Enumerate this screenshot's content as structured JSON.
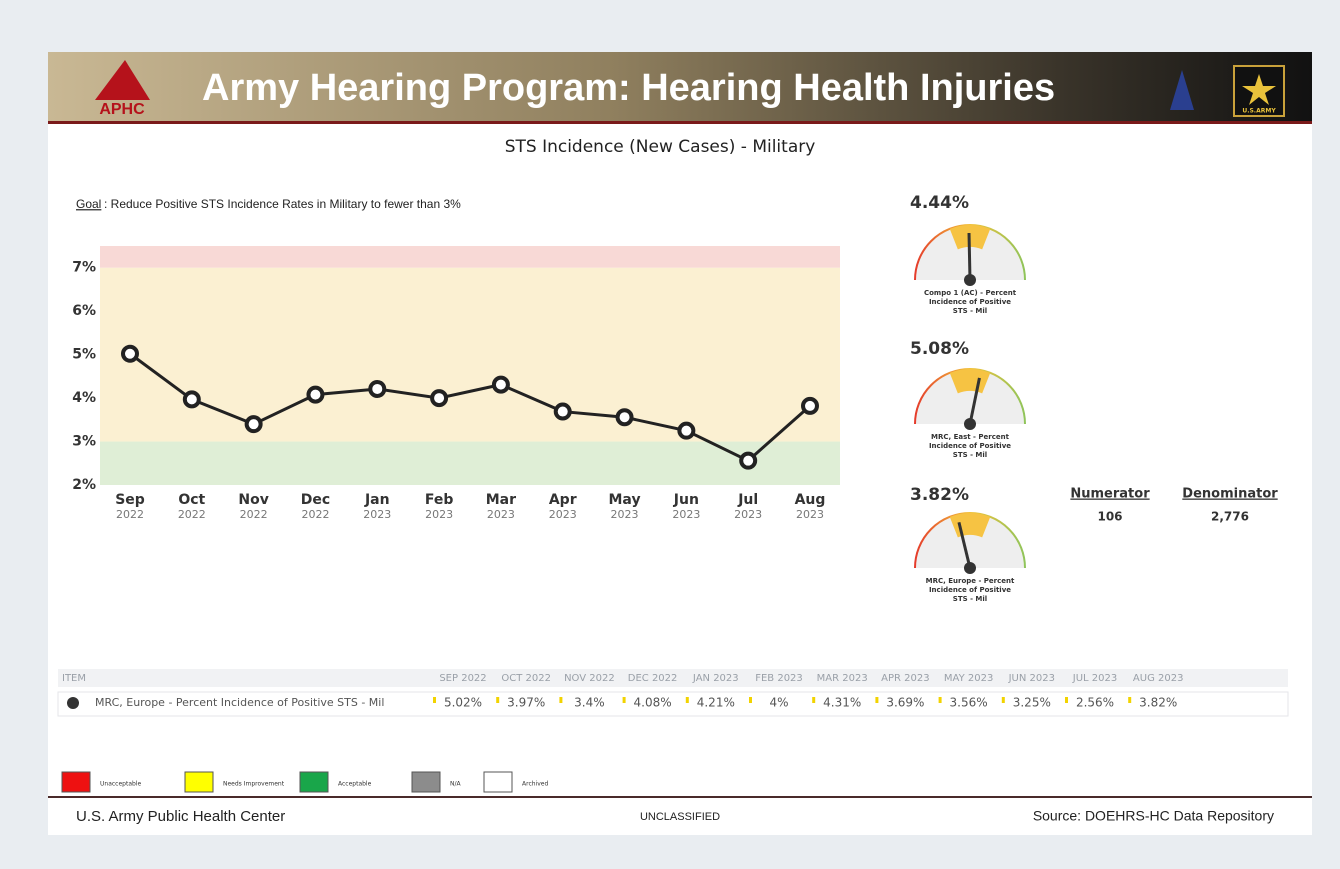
{
  "header": {
    "title": "Army Hearing Program:  Hearing Health Injuries",
    "logo_left": "APHC",
    "logo_right": "U.S.ARMY"
  },
  "chart_data": {
    "type": "line",
    "title": "STS Incidence (New Cases) - Military",
    "goal_label": "Goal",
    "goal_text": ": Reduce Positive STS Incidence Rates in Military to fewer than 3%",
    "categories": [
      "Sep",
      "Oct",
      "Nov",
      "Dec",
      "Jan",
      "Feb",
      "Mar",
      "Apr",
      "May",
      "Jun",
      "Jul",
      "Aug"
    ],
    "category_years": [
      "2022",
      "2022",
      "2022",
      "2022",
      "2023",
      "2023",
      "2023",
      "2023",
      "2023",
      "2023",
      "2023",
      "2023"
    ],
    "values": [
      5.02,
      3.97,
      3.4,
      4.08,
      4.21,
      4,
      4.31,
      3.69,
      3.56,
      3.25,
      2.56,
      3.82
    ],
    "color": "#222222",
    "ylim": [
      2,
      7.5
    ],
    "yticks": [
      {
        "value": 2,
        "label": "2%"
      },
      {
        "value": 3,
        "label": "3%"
      },
      {
        "value": 4,
        "label": "4%"
      },
      {
        "value": 5,
        "label": "5%"
      },
      {
        "value": 6,
        "label": "6%"
      },
      {
        "value": 7,
        "label": "7%"
      }
    ],
    "bands": [
      {
        "from": 2,
        "to": 3,
        "color": "#dfeed6"
      },
      {
        "from": 3,
        "to": 7,
        "color": "#fbf0d2"
      },
      {
        "from": 7,
        "to": 7.5,
        "color": "#f8d9d6"
      }
    ]
  },
  "gauges": {
    "range": [
      0,
      9
    ],
    "items": [
      {
        "value": 4.44,
        "label": "4.44%",
        "caption": [
          "Compo 1 (AC) - Percent",
          "Incidence of Positive",
          "STS - Mil"
        ]
      },
      {
        "value": 5.08,
        "label": "5.08%",
        "caption": [
          "MRC, East - Percent",
          "Incidence of Positive",
          "STS - Mil"
        ]
      },
      {
        "value": 3.82,
        "label": "3.82%",
        "caption": [
          "MRC, Europe - Percent",
          "Incidence of Positive",
          "STS - Mil"
        ]
      }
    ]
  },
  "counts": {
    "numerator_label": "Numerator",
    "numerator": "106",
    "denominator_label": "Denominator",
    "denominator": "2,776"
  },
  "table": {
    "header": [
      "ITEM",
      "SEP 2022",
      "OCT 2022",
      "NOV 2022",
      "DEC 2022",
      "JAN 2023",
      "FEB 2023",
      "MAR 2023",
      "APR 2023",
      "MAY 2023",
      "JUN 2023",
      "JUL 2023",
      "AUG 2023"
    ],
    "rows": [
      [
        "MRC, Europe - Percent Incidence of Positive STS - Mil",
        "5.02%",
        "3.97%",
        "3.4%",
        "4.08%",
        "4.21%",
        "4%",
        "4.31%",
        "3.69%",
        "3.56%",
        "3.25%",
        "2.56%",
        "3.82%"
      ]
    ]
  },
  "legend": [
    {
      "label": "Unacceptable",
      "color": "#ee1111"
    },
    {
      "label": "Needs Improvement",
      "color": "#ffff00"
    },
    {
      "label": "Acceptable",
      "color": "#19a64a"
    },
    {
      "label": "N/A",
      "color": "#8c8c8c"
    },
    {
      "label": "Archived",
      "color": "#ffffff"
    }
  ],
  "footer": {
    "left": "U.S. Army Public Health Center",
    "center": "UNCLASSIFIED",
    "right": "Source:  DOEHRS-HC Data Repository"
  }
}
